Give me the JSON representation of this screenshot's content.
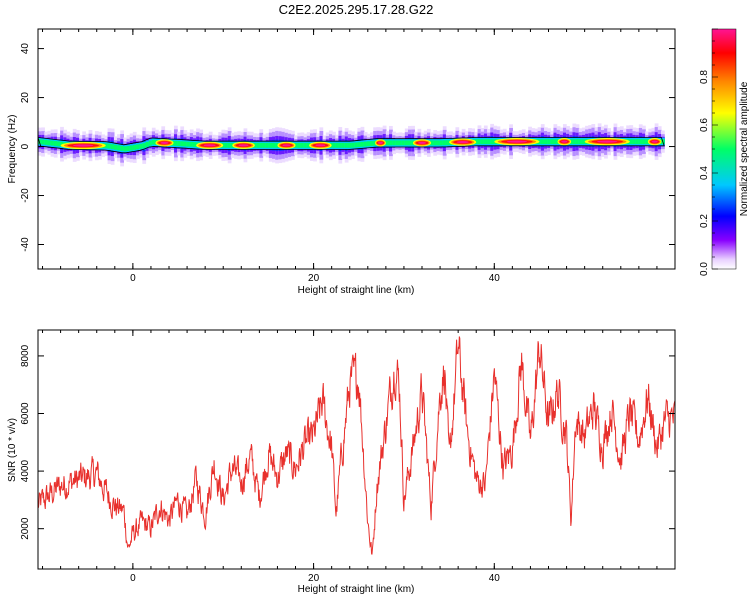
{
  "figure": {
    "title": "C2E2.2025.295.17.28.G22"
  },
  "chart_data": [
    {
      "type": "heatmap",
      "xlabel": "Height of straight line (km)",
      "ylabel": "Frequency (Hz)",
      "xlim": [
        -10.5,
        60
      ],
      "ylim": [
        -50,
        48
      ],
      "x_ticks": [
        0,
        20,
        40
      ],
      "y_ticks": [
        -40,
        -20,
        0,
        20,
        40
      ],
      "colorbar": {
        "label": "Normalized spectral amplitude",
        "range": [
          0,
          1
        ],
        "ticks": [
          "0.0",
          "0.2",
          "0.4",
          "0.6",
          "0.8"
        ],
        "colors": [
          "#ffffff",
          "#8800ff",
          "#0000ff",
          "#00c8ff",
          "#00ff66",
          "#ffff00",
          "#ff8800",
          "#ff0000",
          "#ff1493"
        ]
      },
      "ridge": {
        "comment": "dominant-frequency ridge line, x in km, y in Hz",
        "x": [
          -10.5,
          -7,
          -3,
          -1,
          1,
          2,
          5,
          8,
          12,
          16,
          20,
          24,
          27,
          30,
          34,
          38,
          42,
          46,
          50,
          54,
          58
        ],
        "y": [
          2,
          0.5,
          0.3,
          -1,
          0.3,
          1.8,
          1.2,
          0.5,
          0.5,
          0.5,
          0.5,
          0.5,
          1.5,
          1.5,
          1.5,
          2,
          2,
          2,
          2,
          2,
          2
        ]
      },
      "strong_segments_x": [
        [
          -8,
          -3
        ],
        [
          2.5,
          4.5
        ],
        [
          7,
          10
        ],
        [
          11,
          13.5
        ],
        [
          16,
          18
        ],
        [
          19.5,
          22
        ],
        [
          26.8,
          28
        ],
        [
          31,
          33
        ],
        [
          35,
          38
        ],
        [
          40,
          45
        ],
        [
          47,
          48.5
        ],
        [
          50,
          55
        ],
        [
          57,
          58.5
        ]
      ]
    },
    {
      "type": "line",
      "xlabel": "Height of straight line (km)",
      "ylabel": "SNR (10 * v/v)",
      "xlim": [
        -10.5,
        60
      ],
      "ylim": [
        600,
        8900
      ],
      "x_ticks": [
        0,
        20,
        40
      ],
      "y_ticks": [
        2000,
        4000,
        6000,
        8000
      ],
      "color": "#e8302c",
      "series": [
        {
          "x": [
            -10.5,
            -8,
            -6,
            -4,
            -3,
            -2,
            -1,
            -0.5,
            0,
            1,
            2,
            3,
            4,
            5,
            6,
            7,
            8,
            9,
            10,
            11,
            12,
            13,
            14,
            15,
            16,
            17,
            18,
            19,
            20,
            21,
            22,
            22.5,
            23,
            24,
            25,
            26,
            26.5,
            27,
            28,
            29,
            29.5,
            30,
            31,
            32,
            33,
            34,
            34.5,
            35,
            36,
            37,
            38,
            39,
            40,
            41,
            42,
            43,
            44,
            45,
            46,
            47,
            48,
            48.5,
            49,
            50,
            51,
            52,
            53,
            54,
            55,
            56,
            57,
            58,
            59,
            60
          ],
          "y": [
            2800,
            3500,
            3700,
            3900,
            3300,
            2800,
            2600,
            1300,
            1800,
            2200,
            2000,
            2800,
            2300,
            3000,
            2400,
            3700,
            2500,
            4300,
            3000,
            4100,
            3600,
            4500,
            3100,
            4600,
            3800,
            4600,
            4100,
            4900,
            5200,
            6400,
            4800,
            2500,
            4200,
            7000,
            7300,
            2300,
            1000,
            3500,
            5600,
            7800,
            7000,
            3000,
            4800,
            6800,
            2800,
            6700,
            7600,
            4200,
            8300,
            5400,
            3700,
            3500,
            7400,
            4100,
            4800,
            7800,
            5000,
            8300,
            5600,
            6800,
            5200,
            2300,
            5800,
            5200,
            6200,
            4900,
            6200,
            4400,
            6000,
            5100,
            6600,
            4800,
            5800,
            5800
          ]
        }
      ]
    }
  ]
}
